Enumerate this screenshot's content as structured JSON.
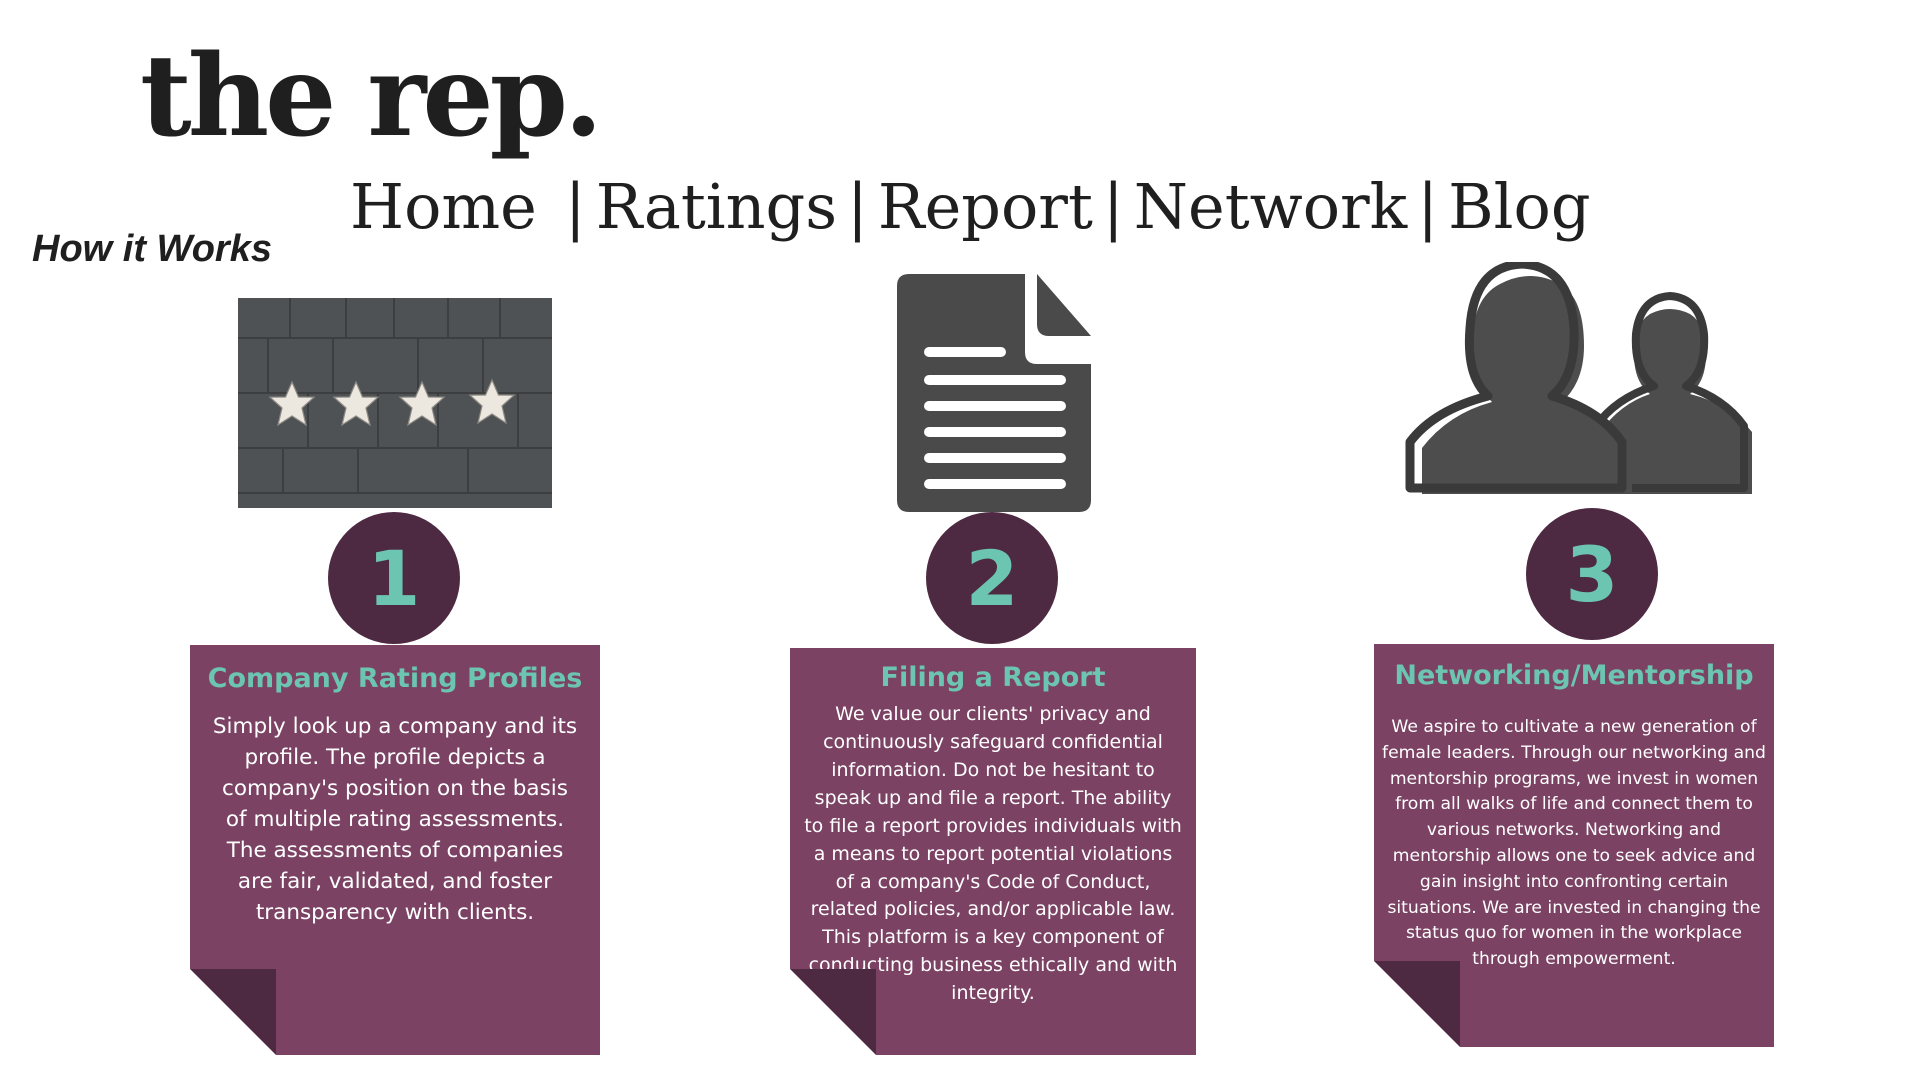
{
  "header": {
    "logo": "the rep.",
    "nav": [
      {
        "label": "Home"
      },
      {
        "label": "Ratings"
      },
      {
        "label": "Report"
      },
      {
        "label": "Network"
      },
      {
        "label": "Blog"
      }
    ],
    "separator": "|"
  },
  "section_title": "How it Works",
  "steps": [
    {
      "number": "1",
      "image": "four-stars-on-stone-wall",
      "title": "Company Rating Profiles",
      "body": "Simply look up a company and its profile. The profile depicts a company's position on the basis of multiple rating assessments. The assessments of companies are fair, validated, and foster transparency with clients."
    },
    {
      "number": "2",
      "image": "document-icon",
      "title": "Filing a Report",
      "body": "We value our clients' privacy and continuously safeguard confidential information. Do not be hesitant to speak up and file a report. The ability to file a report provides individuals with a means to report potential violations of a company's Code of Conduct, related policies, and/or applicable law. This platform is a key component of conducting business ethically and with integrity."
    },
    {
      "number": "3",
      "image": "people-icon",
      "title": "Networking/Mentorship",
      "body": "We aspire to cultivate a new generation of female leaders. Through our networking and mentorship programs, we invest in women from all walks of life and connect them to various networks. Networking and mentorship allows one to seek advice and gain insight into confronting certain situations.  We are invested in changing the status quo for women in the workplace through empowerment."
    }
  ],
  "colors": {
    "circle": "#4e2a42",
    "card": "#7b4263",
    "fold": "#4e2a42",
    "accent": "#6cc5b0",
    "icon": "#4a4a4a"
  }
}
